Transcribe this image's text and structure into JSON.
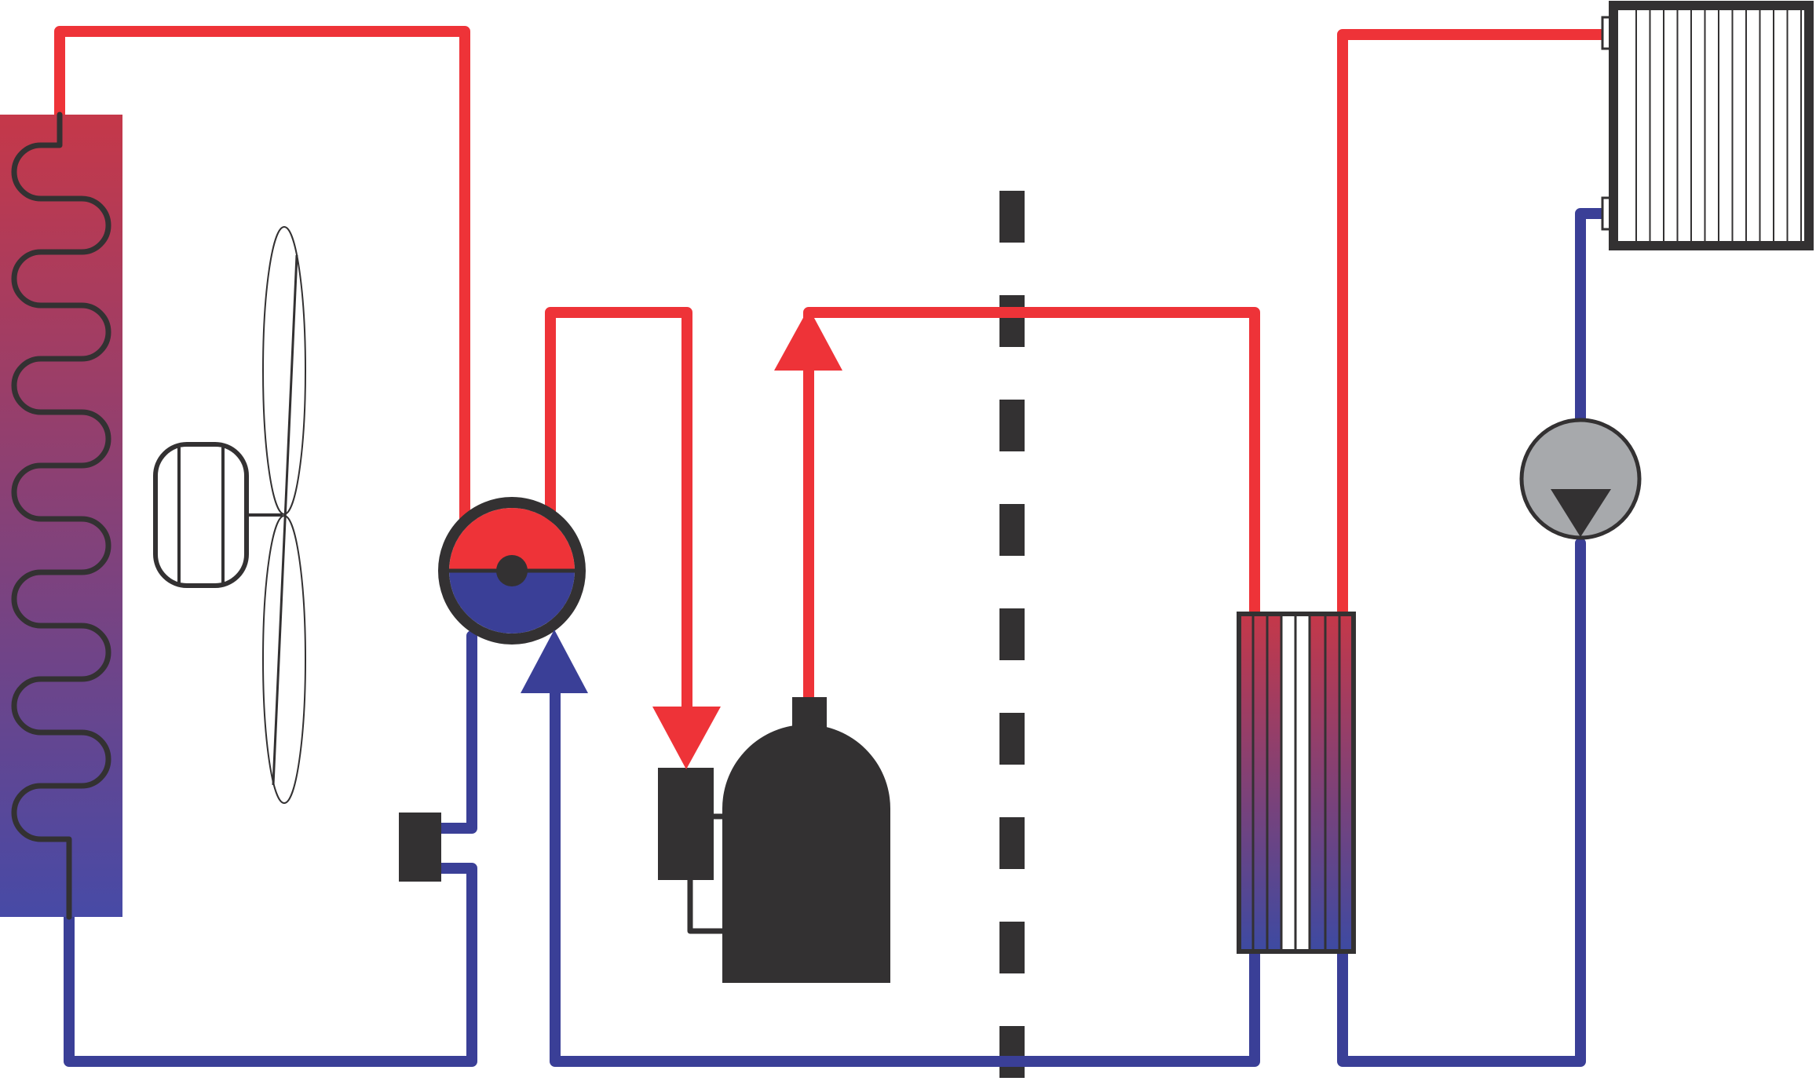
{
  "colors": {
    "hot": "#ee3338",
    "cold": "#3a3f97",
    "dark": "#333132",
    "fan_gray": "#d3d4d6",
    "pump_gray": "#a7a9ac",
    "coil_top": "#c53849",
    "coil_bottom": "#474aa6",
    "hx_top": "#c53849",
    "hx_bottom": "#3d4aa2"
  },
  "components": {
    "air_coil": {
      "icon": "serpentine-coil-icon"
    },
    "fan": {
      "icon": "axial-fan-icon"
    },
    "four_way_valve": {
      "icon": "reversing-valve-icon"
    },
    "expansion_valve": {
      "icon": "expansion-valve-icon"
    },
    "compressor": {
      "icon": "compressor-icon"
    },
    "divider": {
      "icon": "dashed-boundary-line"
    },
    "plate_heat_exchanger": {
      "icon": "plate-heat-exchanger-icon"
    },
    "circulation_pump": {
      "icon": "circulation-pump-icon"
    },
    "radiator": {
      "icon": "radiator-icon"
    }
  },
  "flow_arrows": [
    {
      "direction": "up",
      "color_key": "cold"
    },
    {
      "direction": "down",
      "color_key": "hot"
    },
    {
      "direction": "up",
      "color_key": "hot"
    }
  ]
}
